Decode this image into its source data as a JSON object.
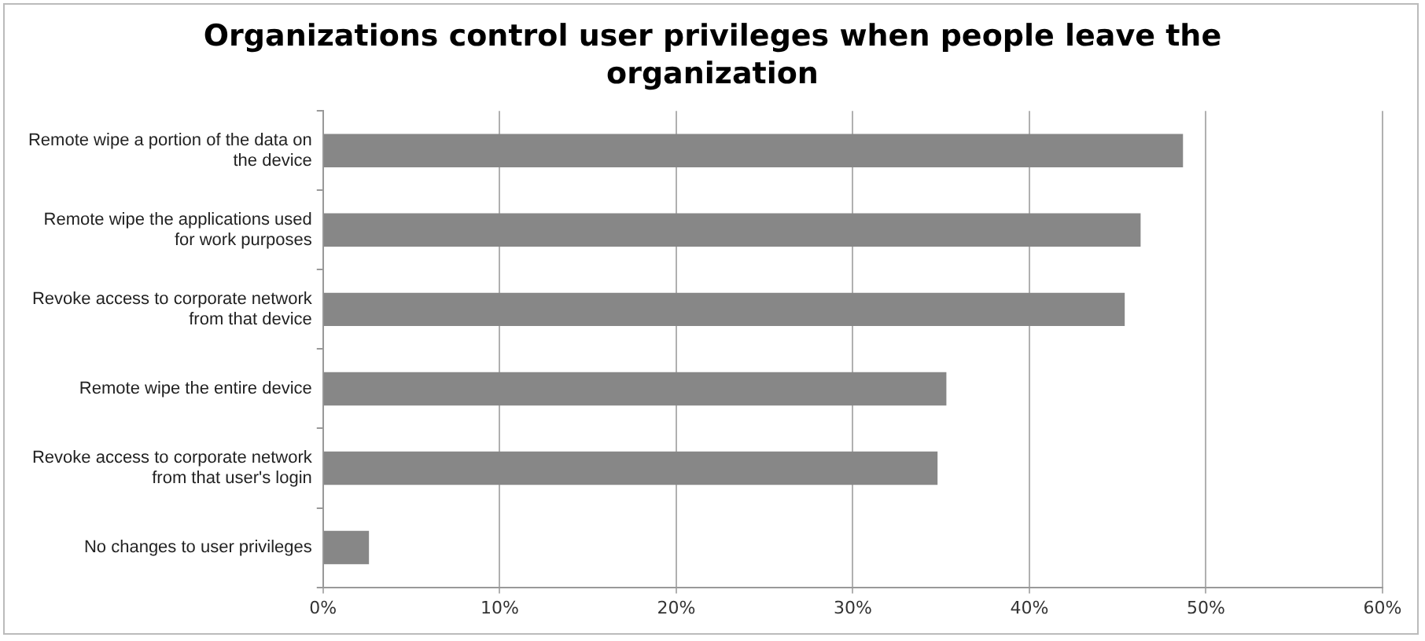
{
  "chart_data": {
    "type": "bar",
    "orientation": "horizontal",
    "title": "Organizations control user privileges when people leave the organization",
    "categories": [
      "Remote wipe a portion of the data on the device",
      "Remote wipe the applications used for work purposes",
      "Revoke access to corporate network from that device",
      "Remote wipe the entire device",
      "Revoke access to corporate network from that user's login",
      "No changes to user privileges"
    ],
    "values": [
      48.7,
      46.3,
      45.4,
      35.3,
      34.8,
      2.6
    ],
    "color": "#878787",
    "xlim": [
      0,
      60
    ],
    "xticks": [
      {
        "value": 0,
        "label": "0%"
      },
      {
        "value": 10,
        "label": "10%"
      },
      {
        "value": 20,
        "label": "20%"
      },
      {
        "value": 30,
        "label": "30%"
      },
      {
        "value": 40,
        "label": "40%"
      },
      {
        "value": 50,
        "label": "50%"
      },
      {
        "value": 60,
        "label": "60%"
      }
    ],
    "grid": "x",
    "legend": false
  }
}
